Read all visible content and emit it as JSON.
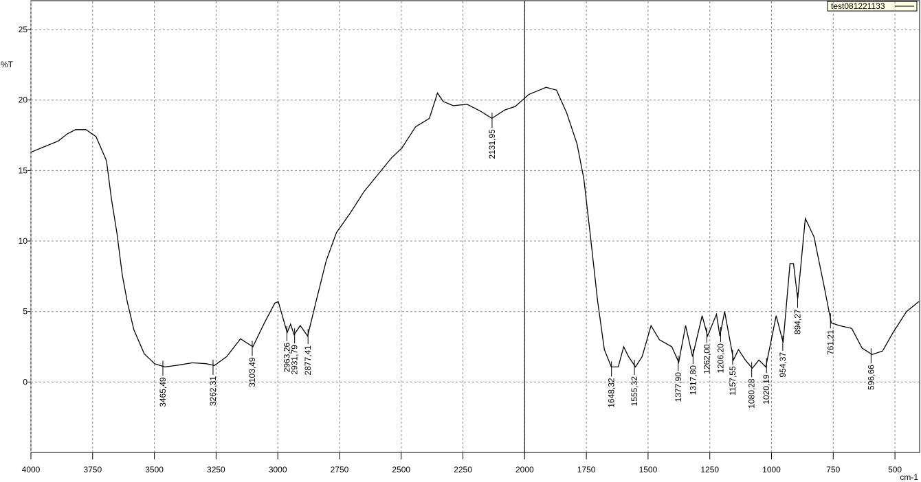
{
  "chart_data": {
    "type": "line",
    "y_label": "%T",
    "x_label": "cm-1",
    "xlim": [
      4000,
      400
    ],
    "ylim": [
      -5,
      27
    ],
    "xticks": [
      4000,
      3750,
      3500,
      3250,
      3000,
      2750,
      2500,
      2250,
      2000,
      1750,
      1500,
      1250,
      1000,
      750,
      500
    ],
    "yticks": [
      0,
      5,
      10,
      15,
      20,
      25
    ],
    "grid": true,
    "cursor_x": 2000,
    "legend": "upper right",
    "series": [
      {
        "name": "test081221133",
        "color": "#000000",
        "x": [
          4000,
          3930,
          3889,
          3853,
          3819,
          3777,
          3736,
          3694,
          3674,
          3652,
          3630,
          3610,
          3583,
          3541,
          3499,
          3457,
          3402,
          3346,
          3290,
          3257,
          3207,
          3151,
          3101,
          3054,
          3012,
          2998,
          2962,
          2948,
          2934,
          2909,
          2879,
          2845,
          2804,
          2762,
          2706,
          2651,
          2595,
          2539,
          2497,
          2442,
          2386,
          2353,
          2330,
          2289,
          2233,
          2178,
          2133,
          2080,
          2038,
          1983,
          1913,
          1871,
          1830,
          1788,
          1760,
          1732,
          1704,
          1677,
          1649,
          1621,
          1599,
          1579,
          1551,
          1524,
          1488,
          1454,
          1404,
          1376,
          1348,
          1320,
          1281,
          1259,
          1223,
          1209,
          1190,
          1154,
          1134,
          1106,
          1078,
          1051,
          1023,
          981,
          953,
          925,
          911,
          894,
          863,
          828,
          786,
          758,
          725,
          675,
          633,
          592,
          550,
          508,
          453,
          403
        ],
        "values": [
          16.3,
          16.8,
          17.1,
          17.6,
          17.9,
          17.9,
          17.4,
          15.7,
          13.0,
          10.6,
          7.6,
          5.7,
          3.7,
          2.0,
          1.3,
          1.07,
          1.2,
          1.36,
          1.3,
          1.17,
          1.8,
          3.06,
          2.5,
          4.2,
          5.6,
          5.7,
          3.5,
          4.1,
          3.36,
          4.0,
          3.26,
          5.7,
          8.6,
          10.6,
          12.0,
          13.5,
          14.7,
          15.9,
          16.6,
          18.1,
          18.7,
          20.5,
          19.9,
          19.6,
          19.7,
          19.2,
          18.7,
          19.3,
          19.55,
          20.4,
          20.9,
          20.7,
          19.1,
          16.9,
          14.4,
          10.1,
          5.7,
          2.3,
          1.07,
          1.07,
          2.5,
          1.8,
          1.07,
          1.8,
          4.0,
          3.0,
          2.5,
          1.4,
          4.0,
          1.8,
          4.7,
          3.26,
          4.8,
          3.26,
          5.0,
          1.56,
          2.3,
          1.56,
          0.97,
          1.56,
          1.07,
          4.7,
          2.8,
          8.4,
          8.4,
          5.9,
          11.6,
          10.3,
          6.7,
          4.2,
          4.0,
          3.8,
          2.4,
          1.95,
          2.2,
          3.5,
          5.0,
          5.7
        ]
      }
    ],
    "annotations": [
      {
        "x": 3465.49,
        "label": "3465,49"
      },
      {
        "x": 3262.31,
        "label": "3262,31"
      },
      {
        "x": 3103.49,
        "label": "3103,49"
      },
      {
        "x": 2963.26,
        "label": "2963,26"
      },
      {
        "x": 2931.79,
        "label": "2931,79"
      },
      {
        "x": 2877.41,
        "label": "2877,41"
      },
      {
        "x": 2131.95,
        "label": "2131,95"
      },
      {
        "x": 1648.32,
        "label": "1648,32"
      },
      {
        "x": 1555.32,
        "label": "1555,32"
      },
      {
        "x": 1377.9,
        "label": "1377,90"
      },
      {
        "x": 1317.8,
        "label": "1317,80"
      },
      {
        "x": 1262.0,
        "label": "1262,00"
      },
      {
        "x": 1206.2,
        "label": "1206,20"
      },
      {
        "x": 1157.55,
        "label": "1157,55"
      },
      {
        "x": 1080.28,
        "label": "1080,28"
      },
      {
        "x": 1020.19,
        "label": "1020,19"
      },
      {
        "x": 954.37,
        "label": "954,37"
      },
      {
        "x": 894.27,
        "label": "894,27"
      },
      {
        "x": 761.21,
        "label": "761,21"
      },
      {
        "x": 596.66,
        "label": "596,66"
      }
    ]
  }
}
